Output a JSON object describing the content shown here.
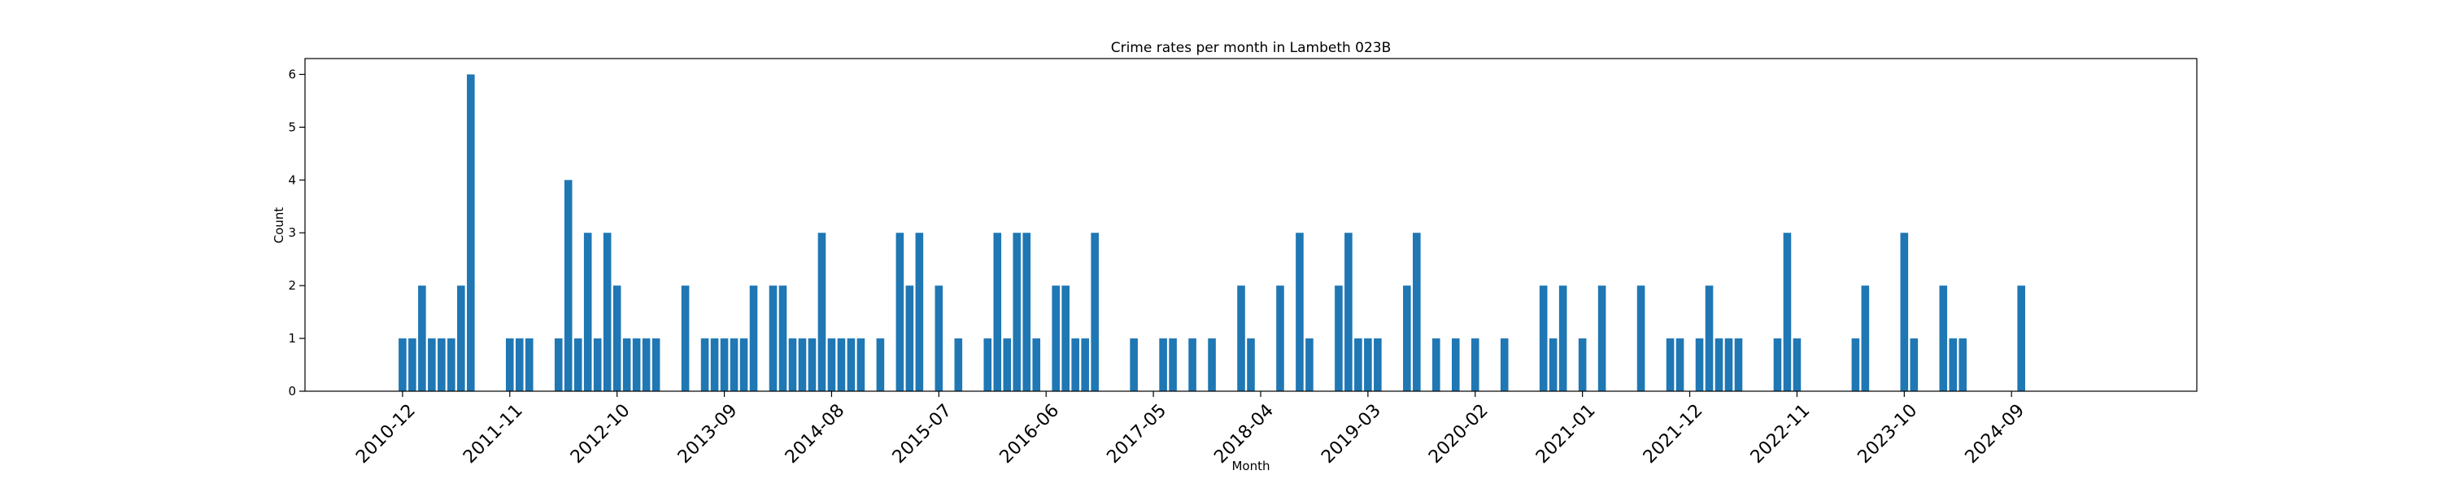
{
  "chart_data": {
    "type": "bar",
    "title": "Crime rates per month in Lambeth 023B",
    "xlabel": "Month",
    "ylabel": "Count",
    "bar_color": "#1f77b4",
    "ylim": [
      0,
      6.3
    ],
    "yticks": [
      0,
      1,
      2,
      3,
      4,
      5,
      6
    ],
    "xticks": [
      "2010-12",
      "2011-11",
      "2012-10",
      "2013-09",
      "2014-08",
      "2015-07",
      "2016-06",
      "2017-05",
      "2018-04",
      "2019-03",
      "2020-02",
      "2021-01",
      "2021-12",
      "2022-11",
      "2023-10",
      "2024-09"
    ],
    "categories": [
      "2010-12",
      "2011-01",
      "2011-02",
      "2011-03",
      "2011-04",
      "2011-05",
      "2011-06",
      "2011-07",
      "2011-11",
      "2011-12",
      "2012-01",
      "2012-04",
      "2012-05",
      "2012-06",
      "2012-07",
      "2012-08",
      "2012-09",
      "2012-10",
      "2012-11",
      "2012-12",
      "2013-01",
      "2013-02",
      "2013-05",
      "2013-07",
      "2013-08",
      "2013-09",
      "2013-10",
      "2013-11",
      "2013-12",
      "2014-02",
      "2014-03",
      "2014-04",
      "2014-05",
      "2014-06",
      "2014-07",
      "2014-08",
      "2014-09",
      "2014-10",
      "2014-11",
      "2015-01",
      "2015-03",
      "2015-04",
      "2015-05",
      "2015-07",
      "2015-09",
      "2015-12",
      "2016-01",
      "2016-02",
      "2016-03",
      "2016-04",
      "2016-05",
      "2016-07",
      "2016-08",
      "2016-09",
      "2016-10",
      "2016-11",
      "2017-03",
      "2017-06",
      "2017-07",
      "2017-09",
      "2017-11",
      "2018-02",
      "2018-03",
      "2018-06",
      "2018-08",
      "2018-09",
      "2018-12",
      "2019-01",
      "2019-02",
      "2019-03",
      "2019-04",
      "2019-07",
      "2019-08",
      "2019-10",
      "2019-12",
      "2020-02",
      "2020-05",
      "2020-09",
      "2020-10",
      "2020-11",
      "2021-01",
      "2021-03",
      "2021-07",
      "2021-10",
      "2021-11",
      "2022-01",
      "2022-02",
      "2022-03",
      "2022-04",
      "2022-05",
      "2022-09",
      "2022-10",
      "2022-11",
      "2023-05",
      "2023-06",
      "2023-10",
      "2023-11",
      "2024-02",
      "2024-03",
      "2024-04",
      "2024-10"
    ],
    "values": [
      1,
      1,
      2,
      1,
      1,
      1,
      2,
      6,
      1,
      1,
      1,
      1,
      4,
      1,
      3,
      1,
      3,
      2,
      1,
      1,
      1,
      1,
      2,
      1,
      1,
      1,
      1,
      1,
      2,
      2,
      2,
      1,
      1,
      1,
      3,
      1,
      1,
      1,
      1,
      1,
      3,
      2,
      3,
      2,
      1,
      1,
      3,
      1,
      3,
      3,
      1,
      2,
      2,
      1,
      1,
      3,
      1,
      1,
      1,
      1,
      1,
      2,
      1,
      2,
      3,
      1,
      2,
      3,
      1,
      1,
      1,
      2,
      3,
      1,
      1,
      1,
      1,
      2,
      1,
      2,
      1,
      2,
      2,
      1,
      1,
      1,
      2,
      1,
      1,
      1,
      1,
      3,
      1,
      1,
      2,
      3,
      1,
      2,
      1,
      1,
      2
    ],
    "x_range": [
      "2010-02",
      "2026-04"
    ],
    "grid": false,
    "legend": "none"
  }
}
